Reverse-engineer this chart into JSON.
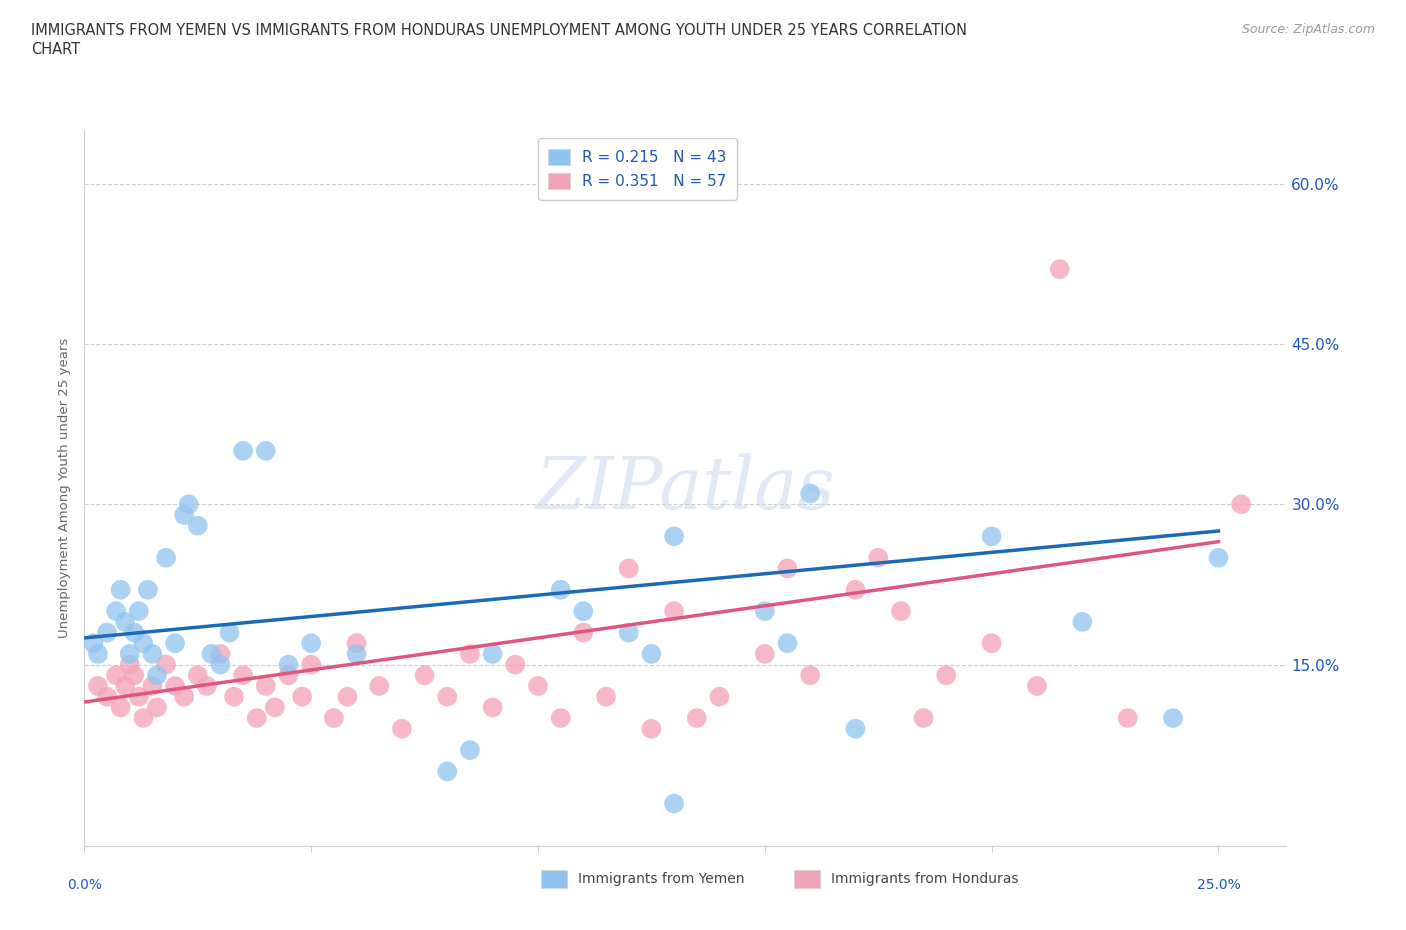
{
  "title": "IMMIGRANTS FROM YEMEN VS IMMIGRANTS FROM HONDURAS UNEMPLOYMENT AMONG YOUTH UNDER 25 YEARS CORRELATION\nCHART",
  "source": "Source: ZipAtlas.com",
  "ylabel": "Unemployment Among Youth under 25 years",
  "xlim": [
    0.0,
    0.265
  ],
  "ylim": [
    -0.02,
    0.65
  ],
  "x_ticks": [
    0.0,
    0.05,
    0.1,
    0.15,
    0.2,
    0.25
  ],
  "y_ticks": [
    0.0,
    0.15,
    0.3,
    0.45,
    0.6
  ],
  "watermark": "ZIPatlas",
  "legend_r1": "R = 0.215",
  "legend_n1": "N = 43",
  "legend_r2": "R = 0.351",
  "legend_n2": "N = 57",
  "color_yemen": "#90c4f0",
  "color_honduras": "#f4a0b8",
  "color_line_yemen": "#1a6ab5",
  "color_line_honduras": "#e05580",
  "color_text_blue": "#2255bb",
  "scatter_yemen_x": [
    0.002,
    0.003,
    0.005,
    0.007,
    0.008,
    0.009,
    0.01,
    0.011,
    0.012,
    0.013,
    0.014,
    0.015,
    0.016,
    0.018,
    0.02,
    0.022,
    0.023,
    0.025,
    0.028,
    0.03,
    0.032,
    0.035,
    0.04,
    0.045,
    0.05,
    0.06,
    0.08,
    0.085,
    0.09,
    0.105,
    0.11,
    0.13,
    0.15,
    0.155,
    0.16,
    0.17,
    0.2,
    0.22,
    0.24,
    0.25,
    0.12,
    0.125,
    0.13
  ],
  "scatter_yemen_y": [
    0.17,
    0.16,
    0.18,
    0.2,
    0.22,
    0.19,
    0.16,
    0.18,
    0.2,
    0.17,
    0.22,
    0.16,
    0.14,
    0.25,
    0.17,
    0.29,
    0.3,
    0.28,
    0.16,
    0.15,
    0.18,
    0.35,
    0.35,
    0.15,
    0.17,
    0.16,
    0.05,
    0.07,
    0.16,
    0.22,
    0.2,
    0.27,
    0.2,
    0.17,
    0.31,
    0.09,
    0.27,
    0.19,
    0.1,
    0.25,
    0.18,
    0.16,
    0.02
  ],
  "scatter_honduras_x": [
    0.003,
    0.005,
    0.007,
    0.008,
    0.009,
    0.01,
    0.011,
    0.012,
    0.013,
    0.015,
    0.016,
    0.018,
    0.02,
    0.022,
    0.025,
    0.027,
    0.03,
    0.033,
    0.035,
    0.038,
    0.04,
    0.042,
    0.045,
    0.048,
    0.05,
    0.055,
    0.058,
    0.06,
    0.065,
    0.07,
    0.075,
    0.08,
    0.085,
    0.09,
    0.095,
    0.1,
    0.105,
    0.11,
    0.115,
    0.12,
    0.125,
    0.13,
    0.135,
    0.14,
    0.15,
    0.155,
    0.16,
    0.17,
    0.175,
    0.18,
    0.185,
    0.19,
    0.2,
    0.21,
    0.215,
    0.23,
    0.255
  ],
  "scatter_honduras_y": [
    0.13,
    0.12,
    0.14,
    0.11,
    0.13,
    0.15,
    0.14,
    0.12,
    0.1,
    0.13,
    0.11,
    0.15,
    0.13,
    0.12,
    0.14,
    0.13,
    0.16,
    0.12,
    0.14,
    0.1,
    0.13,
    0.11,
    0.14,
    0.12,
    0.15,
    0.1,
    0.12,
    0.17,
    0.13,
    0.09,
    0.14,
    0.12,
    0.16,
    0.11,
    0.15,
    0.13,
    0.1,
    0.18,
    0.12,
    0.24,
    0.09,
    0.2,
    0.1,
    0.12,
    0.16,
    0.24,
    0.14,
    0.22,
    0.25,
    0.2,
    0.1,
    0.14,
    0.17,
    0.13,
    0.52,
    0.1,
    0.3
  ]
}
